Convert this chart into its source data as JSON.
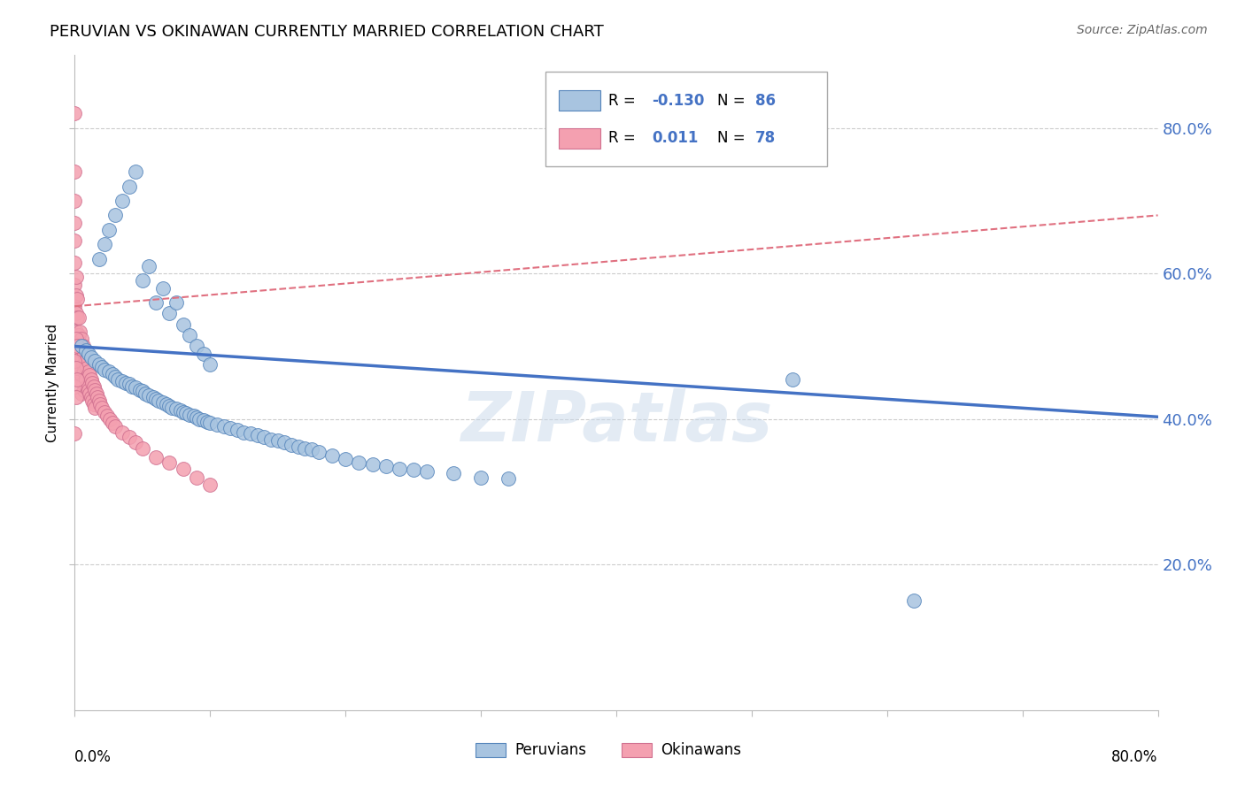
{
  "title": "PERUVIAN VS OKINAWAN CURRENTLY MARRIED CORRELATION CHART",
  "source": "Source: ZipAtlas.com",
  "ylabel": "Currently Married",
  "ytick_values": [
    0.2,
    0.4,
    0.6,
    0.8
  ],
  "ytick_labels": [
    "20.0%",
    "40.0%",
    "60.0%",
    "80.0%"
  ],
  "xlim": [
    0.0,
    0.8
  ],
  "ylim": [
    0.0,
    0.9
  ],
  "blue_r": "-0.130",
  "blue_n": "86",
  "pink_r": "0.011",
  "pink_n": "78",
  "blue_color": "#a8c4e0",
  "pink_color": "#f4a0b0",
  "blue_edge_color": "#5585bb",
  "pink_edge_color": "#d07090",
  "blue_line_color": "#4472c4",
  "pink_line_color": "#e07080",
  "legend_label_blue": "Peruvians",
  "legend_label_pink": "Okinawans",
  "watermark": "ZIPatlas",
  "blue_line_x": [
    0.0,
    0.8
  ],
  "blue_line_y": [
    0.5,
    0.403
  ],
  "pink_line_x": [
    0.0,
    0.8
  ],
  "pink_line_y": [
    0.555,
    0.68
  ],
  "blue_scatter_x": [
    0.005,
    0.008,
    0.01,
    0.012,
    0.015,
    0.018,
    0.02,
    0.022,
    0.025,
    0.028,
    0.03,
    0.032,
    0.035,
    0.038,
    0.04,
    0.042,
    0.045,
    0.048,
    0.05,
    0.052,
    0.055,
    0.058,
    0.06,
    0.062,
    0.065,
    0.068,
    0.07,
    0.072,
    0.075,
    0.078,
    0.08,
    0.082,
    0.085,
    0.088,
    0.09,
    0.092,
    0.095,
    0.098,
    0.1,
    0.105,
    0.11,
    0.115,
    0.12,
    0.125,
    0.13,
    0.135,
    0.14,
    0.145,
    0.15,
    0.155,
    0.16,
    0.165,
    0.17,
    0.175,
    0.18,
    0.19,
    0.2,
    0.21,
    0.22,
    0.23,
    0.24,
    0.25,
    0.26,
    0.28,
    0.3,
    0.32,
    0.018,
    0.022,
    0.025,
    0.03,
    0.035,
    0.04,
    0.045,
    0.05,
    0.055,
    0.06,
    0.065,
    0.07,
    0.075,
    0.08,
    0.085,
    0.09,
    0.095,
    0.1,
    0.53,
    0.62
  ],
  "blue_scatter_y": [
    0.5,
    0.495,
    0.49,
    0.485,
    0.48,
    0.475,
    0.472,
    0.468,
    0.465,
    0.462,
    0.458,
    0.455,
    0.452,
    0.45,
    0.448,
    0.445,
    0.443,
    0.44,
    0.438,
    0.435,
    0.433,
    0.43,
    0.428,
    0.425,
    0.423,
    0.42,
    0.418,
    0.416,
    0.414,
    0.412,
    0.41,
    0.408,
    0.406,
    0.404,
    0.402,
    0.4,
    0.398,
    0.396,
    0.395,
    0.392,
    0.39,
    0.388,
    0.385,
    0.382,
    0.38,
    0.378,
    0.375,
    0.372,
    0.37,
    0.368,
    0.365,
    0.362,
    0.36,
    0.358,
    0.355,
    0.35,
    0.345,
    0.34,
    0.338,
    0.335,
    0.332,
    0.33,
    0.328,
    0.325,
    0.32,
    0.318,
    0.62,
    0.64,
    0.66,
    0.68,
    0.7,
    0.72,
    0.74,
    0.59,
    0.61,
    0.56,
    0.58,
    0.545,
    0.56,
    0.53,
    0.515,
    0.5,
    0.49,
    0.475,
    0.455,
    0.15
  ],
  "pink_scatter_x": [
    0.0,
    0.0,
    0.0,
    0.0,
    0.0,
    0.0,
    0.0,
    0.0,
    0.001,
    0.001,
    0.001,
    0.001,
    0.001,
    0.002,
    0.002,
    0.002,
    0.002,
    0.002,
    0.003,
    0.003,
    0.003,
    0.003,
    0.004,
    0.004,
    0.004,
    0.005,
    0.005,
    0.005,
    0.005,
    0.006,
    0.006,
    0.006,
    0.007,
    0.007,
    0.007,
    0.008,
    0.008,
    0.009,
    0.009,
    0.01,
    0.01,
    0.011,
    0.011,
    0.012,
    0.012,
    0.013,
    0.013,
    0.014,
    0.014,
    0.015,
    0.015,
    0.016,
    0.017,
    0.018,
    0.019,
    0.02,
    0.022,
    0.024,
    0.026,
    0.028,
    0.03,
    0.035,
    0.04,
    0.045,
    0.05,
    0.06,
    0.07,
    0.08,
    0.09,
    0.1,
    0.0,
    0.0,
    0.0,
    0.001,
    0.001,
    0.001,
    0.002,
    0.002
  ],
  "pink_scatter_y": [
    0.82,
    0.74,
    0.7,
    0.67,
    0.645,
    0.615,
    0.585,
    0.555,
    0.595,
    0.57,
    0.545,
    0.52,
    0.49,
    0.565,
    0.54,
    0.515,
    0.49,
    0.46,
    0.54,
    0.515,
    0.49,
    0.465,
    0.52,
    0.495,
    0.465,
    0.51,
    0.485,
    0.46,
    0.435,
    0.5,
    0.475,
    0.45,
    0.49,
    0.465,
    0.44,
    0.48,
    0.455,
    0.47,
    0.445,
    0.465,
    0.44,
    0.46,
    0.435,
    0.455,
    0.43,
    0.45,
    0.425,
    0.445,
    0.42,
    0.44,
    0.415,
    0.435,
    0.43,
    0.425,
    0.42,
    0.415,
    0.41,
    0.405,
    0.4,
    0.395,
    0.39,
    0.382,
    0.375,
    0.368,
    0.36,
    0.348,
    0.34,
    0.332,
    0.32,
    0.31,
    0.48,
    0.445,
    0.38,
    0.51,
    0.47,
    0.43,
    0.5,
    0.455
  ],
  "grid_color": "#cccccc",
  "grid_yticks": [
    0.2,
    0.4,
    0.6,
    0.8
  ],
  "right_axis_color": "#4472c4"
}
